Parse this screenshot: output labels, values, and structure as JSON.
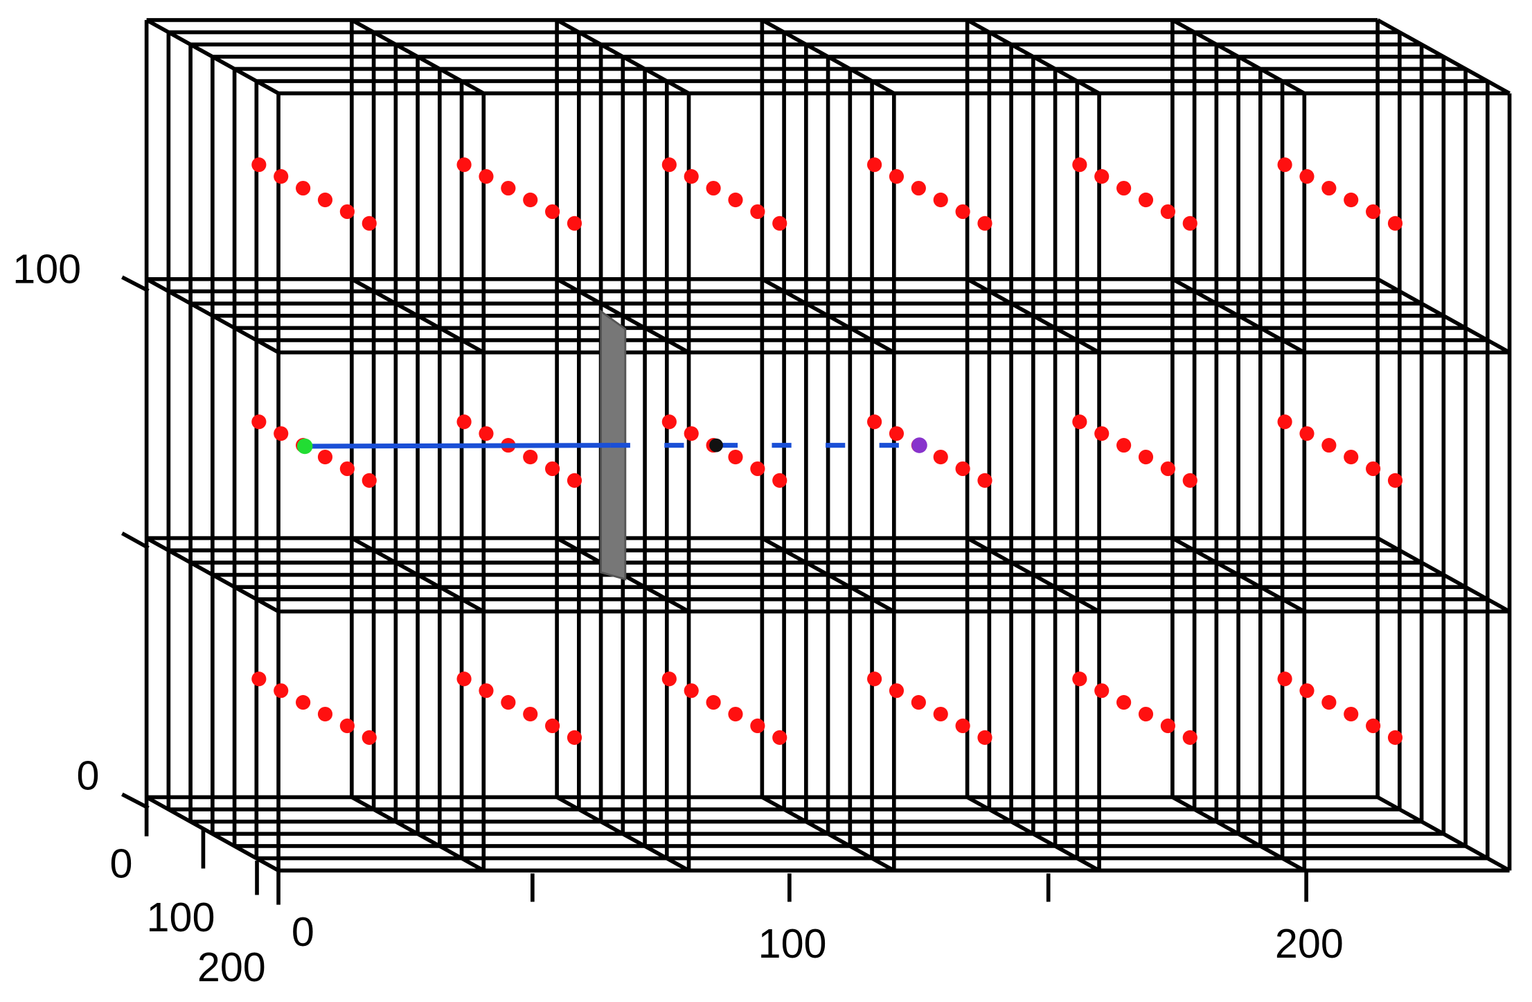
{
  "axes": {
    "x": {
      "labels": [
        0,
        100,
        200
      ]
    },
    "vertical": {
      "labels": [
        100,
        0
      ]
    },
    "depth": {
      "labels": [
        0,
        100,
        200
      ]
    }
  }
}
